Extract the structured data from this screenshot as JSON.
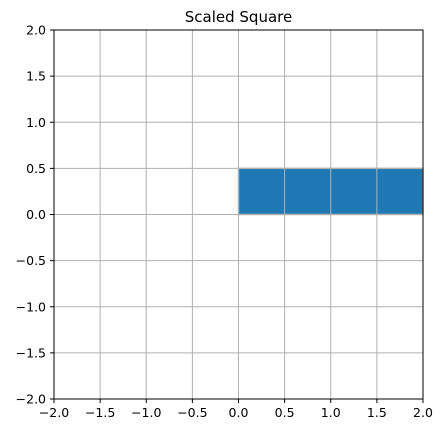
{
  "chart_data": {
    "type": "area",
    "title": "Scaled Square",
    "xlabel": "",
    "ylabel": "",
    "xlim": [
      -2.0,
      2.0
    ],
    "ylim": [
      -2.0,
      2.0
    ],
    "x_ticks": [
      -2.0,
      -1.5,
      -1.0,
      -0.5,
      0.0,
      0.5,
      1.0,
      1.5,
      2.0
    ],
    "y_ticks": [
      -2.0,
      -1.5,
      -1.0,
      -0.5,
      0.0,
      0.5,
      1.0,
      1.5,
      2.0
    ],
    "x_tick_labels": [
      "−2.0",
      "−1.5",
      "−1.0",
      "−0.5",
      "0.0",
      "0.5",
      "1.0",
      "1.5",
      "2.0"
    ],
    "y_tick_labels": [
      "−2.0",
      "−1.5",
      "−1.0",
      "−0.5",
      "0.0",
      "0.5",
      "1.0",
      "1.5",
      "2.0"
    ],
    "grid": true,
    "series": [
      {
        "polygon": [
          [
            0.0,
            0.0
          ],
          [
            2.0,
            0.0
          ],
          [
            2.0,
            0.5
          ],
          [
            0.0,
            0.5
          ]
        ],
        "color": "#1f77b4",
        "edge_color": "#b0b8a8"
      }
    ],
    "grid_color": "#b0b0b0",
    "axis_color": "#000000"
  }
}
